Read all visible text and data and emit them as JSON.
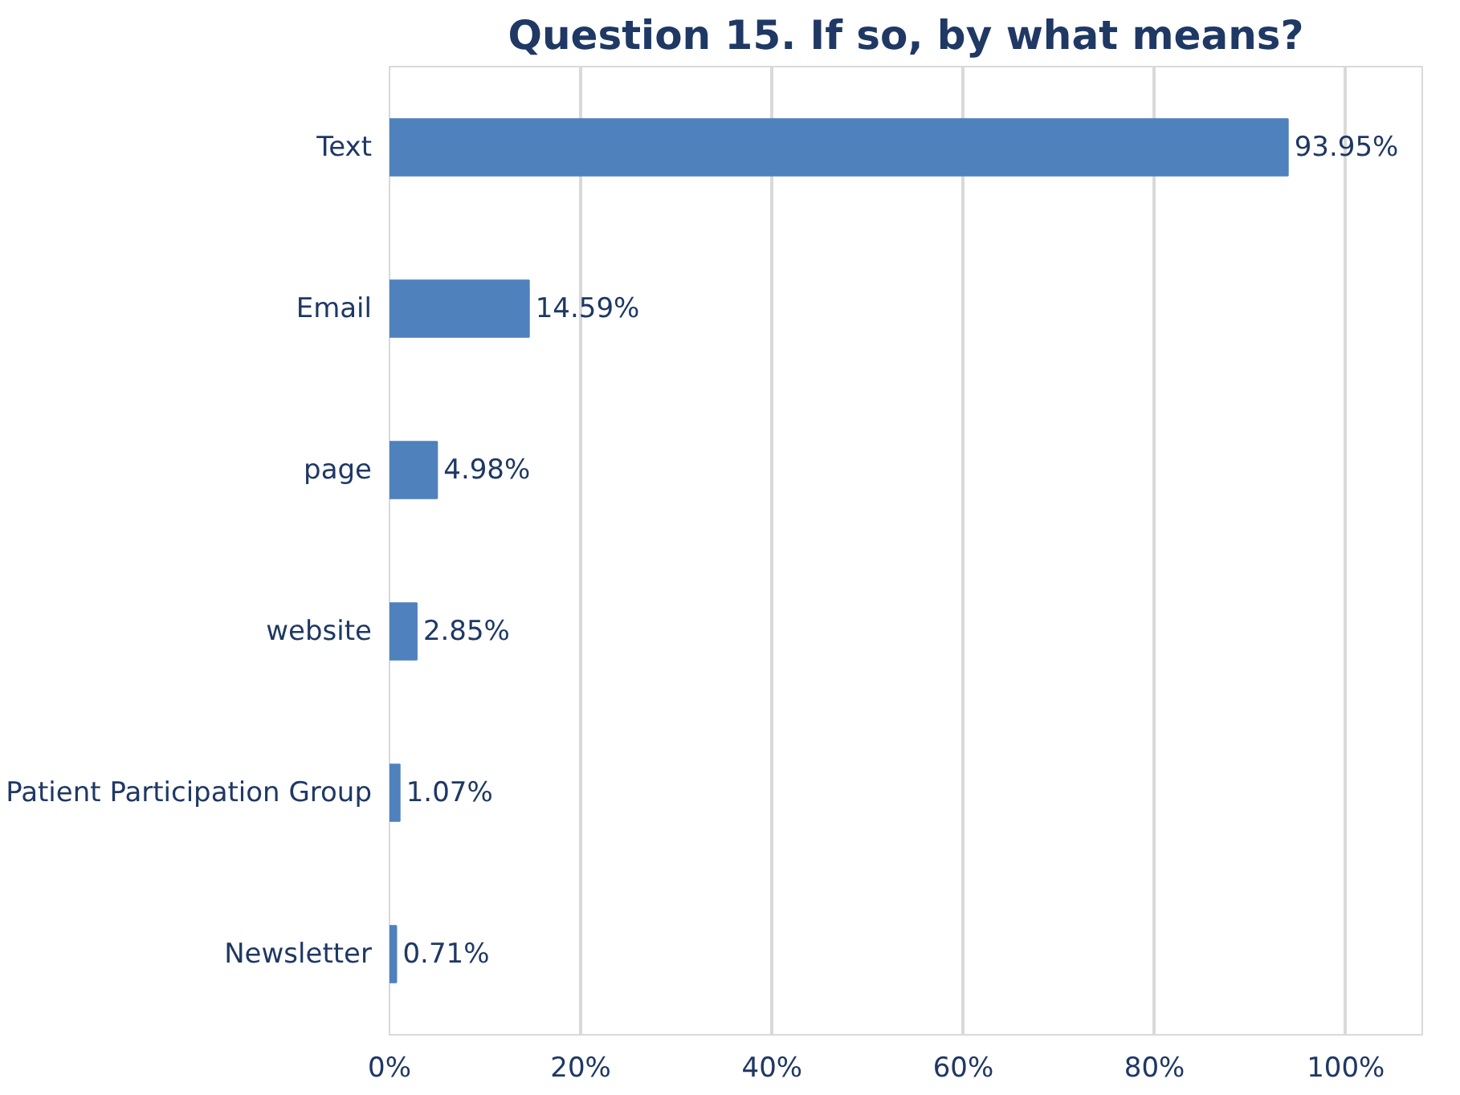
{
  "chart_data": {
    "type": "bar",
    "orientation": "horizontal",
    "title": "Question 15. If so, by what means?",
    "categories": [
      "Text",
      "Email",
      "page",
      "website",
      "Patient Participation Group",
      "Newsletter"
    ],
    "values": [
      93.95,
      14.59,
      4.98,
      2.85,
      1.07,
      0.71
    ],
    "value_labels": [
      "93.95%",
      "14.59%",
      "4.98%",
      "2.85%",
      "1.07%",
      "0.71%"
    ],
    "color": "#4f81bd",
    "xlim": [
      0,
      108
    ],
    "xticks": [
      {
        "value": 0,
        "label": "0%"
      },
      {
        "value": 20,
        "label": "20%"
      },
      {
        "value": 40,
        "label": "40%"
      },
      {
        "value": 60,
        "label": "60%"
      },
      {
        "value": 80,
        "label": "80%"
      },
      {
        "value": 100,
        "label": "100%"
      }
    ],
    "grid": "x"
  }
}
